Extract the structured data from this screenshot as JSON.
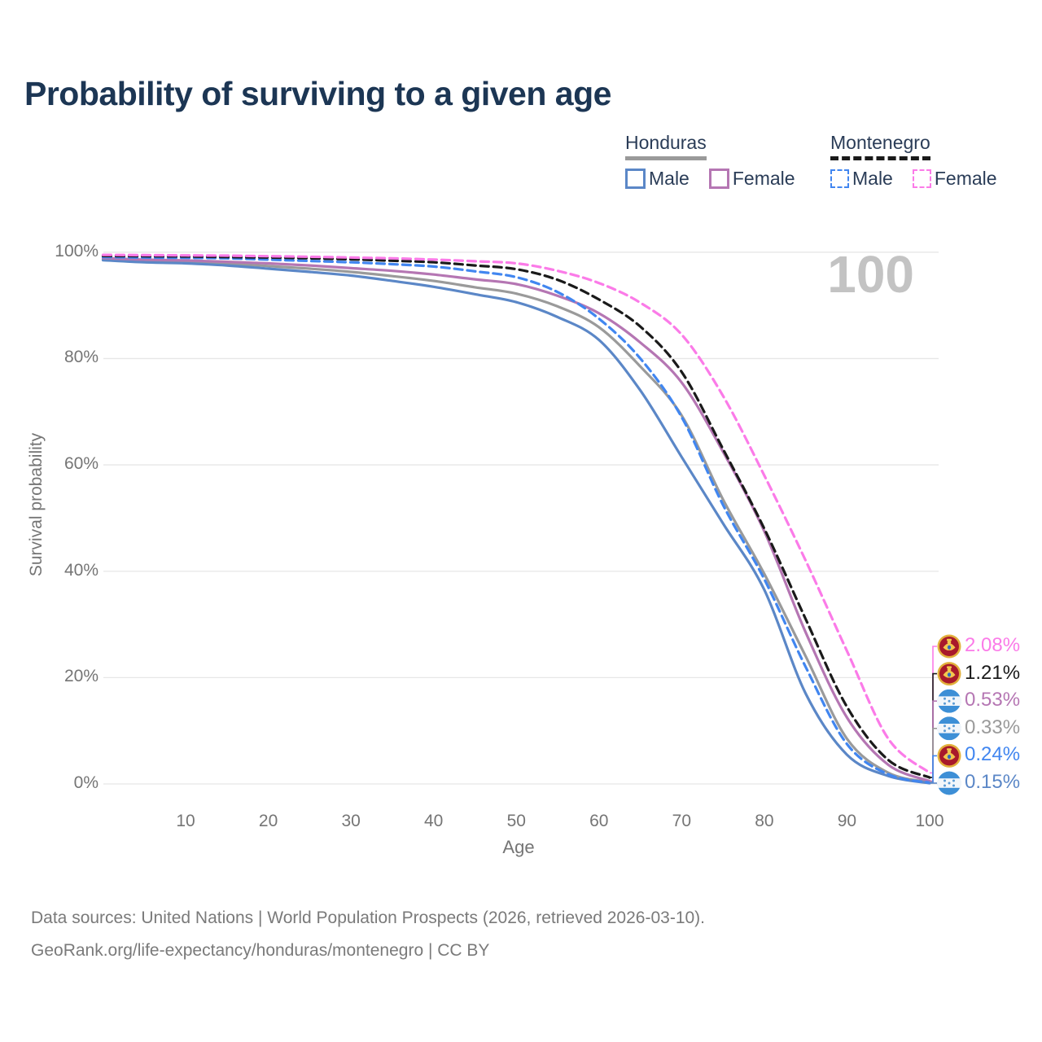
{
  "title": "Probability of surviving to a given age",
  "watermark": "100",
  "legend": {
    "groups": [
      {
        "country": "Honduras",
        "line_style": "solid",
        "underline_color": "#9a9a9a",
        "items": [
          {
            "label": "Male",
            "color": "#5b87c7",
            "dashed": false
          },
          {
            "label": "Female",
            "color": "#b576b3",
            "dashed": false
          }
        ]
      },
      {
        "country": "Montenegro",
        "line_style": "dashed",
        "underline_color": "#1a1a1a",
        "items": [
          {
            "label": "Male",
            "color": "#4186f0",
            "dashed": true
          },
          {
            "label": "Female",
            "color": "#fb7be8",
            "dashed": true
          }
        ]
      }
    ]
  },
  "chart_data": {
    "type": "line",
    "title": "Probability of surviving to a given age",
    "xlabel": "Age",
    "ylabel": "Survival probability",
    "xlim": [
      0,
      100
    ],
    "ylim": [
      0,
      100
    ],
    "grid": "horizontal-only",
    "x_ticks": [
      10,
      20,
      30,
      40,
      50,
      60,
      70,
      80,
      90,
      100
    ],
    "y_ticks": [
      "0%",
      "20%",
      "40%",
      "60%",
      "80%",
      "100%"
    ],
    "x": [
      0,
      5,
      10,
      15,
      20,
      25,
      30,
      35,
      40,
      45,
      50,
      55,
      60,
      65,
      70,
      75,
      80,
      85,
      90,
      95,
      100
    ],
    "series": [
      {
        "name": "Honduras Male",
        "color": "#5b87c7",
        "dashed": false,
        "values": [
          98.5,
          98.1,
          97.9,
          97.5,
          96.9,
          96.3,
          95.6,
          94.6,
          93.5,
          92.1,
          90.6,
          87.8,
          83.5,
          74.0,
          61.5,
          49.0,
          36.5,
          17.0,
          5.5,
          1.5,
          0.15
        ]
      },
      {
        "name": "Honduras Female",
        "color": "#b576b3",
        "dashed": false,
        "values": [
          98.9,
          98.6,
          98.45,
          98.2,
          97.9,
          97.5,
          97.0,
          96.5,
          95.8,
          94.9,
          94.0,
          91.8,
          88.5,
          83.0,
          75.5,
          62.5,
          47.5,
          28.5,
          12.5,
          3.6,
          0.53
        ]
      },
      {
        "name": "Honduras Both sexes",
        "color": "#9a9a9a",
        "dashed": false,
        "values": [
          98.7,
          98.35,
          98.15,
          97.85,
          97.4,
          96.9,
          96.3,
          95.5,
          94.6,
          93.4,
          92.2,
          89.8,
          85.9,
          78.5,
          69.3,
          53.5,
          39.5,
          24.0,
          8.5,
          2.1,
          0.33
        ]
      },
      {
        "name": "Montenegro Male",
        "color": "#4186f0",
        "dashed": true,
        "values": [
          99.1,
          99.0,
          98.95,
          98.85,
          98.6,
          98.35,
          98.1,
          97.75,
          97.3,
          96.4,
          95.3,
          92.5,
          87.5,
          80.0,
          69.0,
          52.5,
          38.5,
          22.0,
          7.5,
          1.8,
          0.24
        ]
      },
      {
        "name": "Montenegro Female",
        "color": "#fb7be8",
        "dashed": true,
        "values": [
          99.5,
          99.45,
          99.4,
          99.35,
          99.25,
          99.15,
          99.0,
          98.85,
          98.6,
          98.3,
          97.9,
          96.5,
          94.2,
          90.5,
          84.5,
          73.0,
          58.0,
          42.0,
          25.0,
          8.5,
          2.08
        ]
      },
      {
        "name": "Montenegro Both sexes",
        "color": "#1a1a1a",
        "dashed": true,
        "values": [
          99.3,
          99.25,
          99.2,
          99.1,
          99.0,
          98.85,
          98.65,
          98.4,
          98.1,
          97.5,
          96.8,
          94.8,
          91.1,
          86.0,
          77.5,
          63.0,
          48.0,
          31.0,
          14.5,
          4.5,
          1.21
        ]
      }
    ],
    "end_labels": [
      {
        "text": "2.08%",
        "series": "Montenegro Female",
        "flag": "montenegro",
        "color": "#fb7be8"
      },
      {
        "text": "1.21%",
        "series": "Montenegro Both sexes",
        "flag": "montenegro",
        "color": "#1a1a1a"
      },
      {
        "text": "0.53%",
        "series": "Honduras Female",
        "flag": "honduras",
        "color": "#b576b3"
      },
      {
        "text": "0.33%",
        "series": "Honduras Both sexes",
        "flag": "honduras",
        "color": "#9a9a9a"
      },
      {
        "text": "0.24%",
        "series": "Montenegro Male",
        "flag": "montenegro",
        "color": "#4186f0"
      },
      {
        "text": "0.15%",
        "series": "Honduras Male",
        "flag": "honduras",
        "color": "#5b87c7"
      }
    ],
    "legend_position": "top-right"
  },
  "footer": {
    "line1": "Data sources: United Nations | World Population Prospects (2026, retrieved 2026-03-10).",
    "line2": "GeoRank.org/life-expectancy/honduras/montenegro | CC BY"
  },
  "colors": {
    "title": "#1c3654",
    "axis_text": "#757575",
    "gridline": "#e7e7e7",
    "watermark": "#c3c3c3",
    "footer_text": "#7a7a7a",
    "legend_text": "#2a3c57"
  }
}
